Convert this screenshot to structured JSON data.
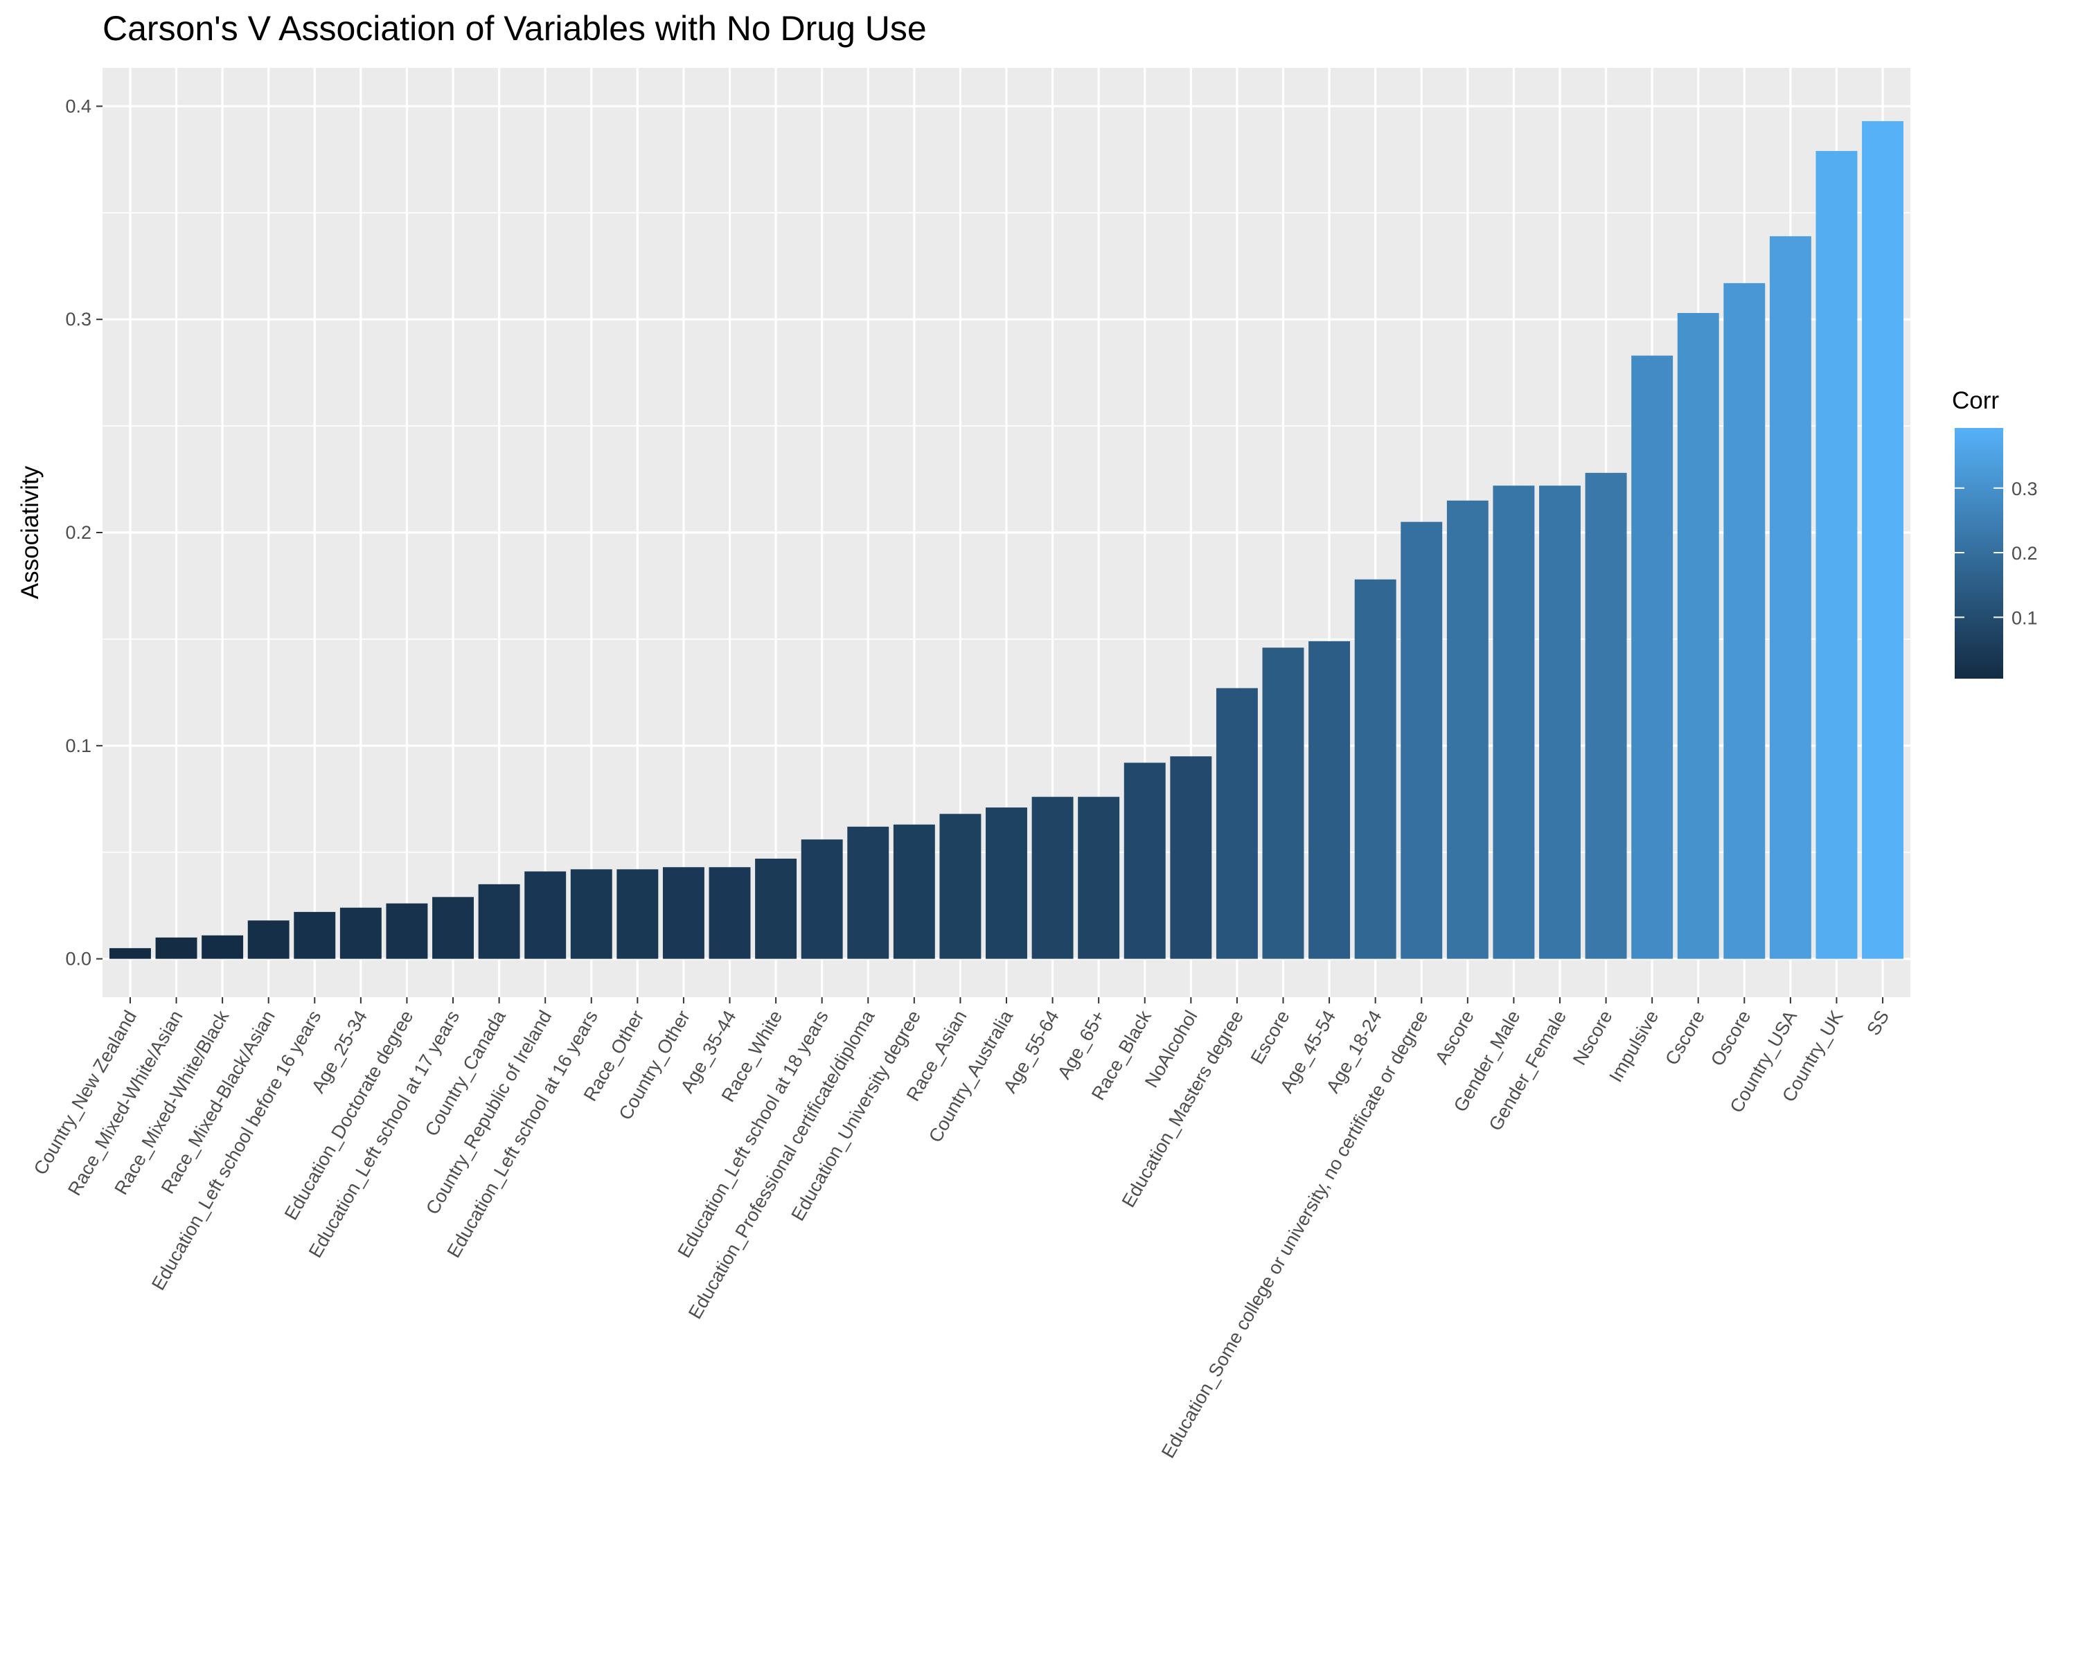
{
  "chart_data": {
    "type": "bar",
    "title": "Carson's V Association of Variables with No Drug Use",
    "xlabel": "",
    "ylabel": "Associativity",
    "ylim": [
      -0.018,
      0.418
    ],
    "yticks": [
      "0.0",
      "0.1",
      "0.2",
      "0.3",
      "0.4"
    ],
    "grid": true,
    "legend": {
      "title": "Corr",
      "placement": "right",
      "ticks": [
        "0.1",
        "0.2",
        "0.3"
      ],
      "color_low": "#132b43",
      "color_high": "#56b1f7"
    },
    "categories": [
      "Country_New Zealand",
      "Race_Mixed-White/Asian",
      "Race_Mixed-White/Black",
      "Race_Mixed-Black/Asian",
      "Education_Left school before 16 years",
      "Age_25-34",
      "Education_Doctorate degree",
      "Education_Left school at 17 years",
      "Country_Canada",
      "Country_Republic of Ireland",
      "Education_Left school at 16 years",
      "Race_Other",
      "Country_Other",
      "Age_35-44",
      "Race_White",
      "Education_Left school at 18 years",
      "Education_Professional certificate/diploma",
      "Education_University degree",
      "Race_Asian",
      "Country_Australia",
      "Age_55-64",
      "Age_65+",
      "Race_Black",
      "NoAlcohol",
      "Education_Masters degree",
      "Escore",
      "Age_45-54",
      "Age_18-24",
      "Education_Some college or university, no certificate or degree",
      "Ascore",
      "Gender_Male",
      "Gender_Female",
      "Nscore",
      "Impulsive",
      "Cscore",
      "Oscore",
      "Country_USA",
      "Country_UK",
      "SS"
    ],
    "values": [
      0.005,
      0.01,
      0.011,
      0.018,
      0.022,
      0.024,
      0.026,
      0.029,
      0.035,
      0.041,
      0.042,
      0.042,
      0.043,
      0.043,
      0.047,
      0.056,
      0.062,
      0.063,
      0.068,
      0.071,
      0.076,
      0.076,
      0.092,
      0.095,
      0.127,
      0.146,
      0.149,
      0.178,
      0.205,
      0.215,
      0.222,
      0.222,
      0.228,
      0.283,
      0.303,
      0.317,
      0.339,
      0.379,
      0.393
    ]
  }
}
